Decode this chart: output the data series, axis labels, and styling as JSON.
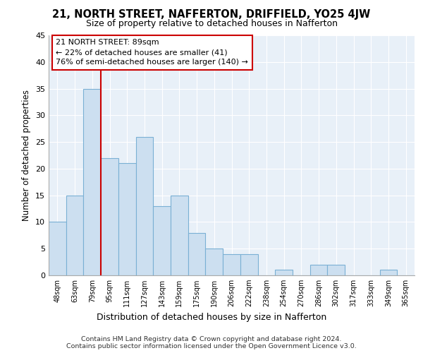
{
  "title": "21, NORTH STREET, NAFFERTON, DRIFFIELD, YO25 4JW",
  "subtitle": "Size of property relative to detached houses in Nafferton",
  "xlabel": "Distribution of detached houses by size in Nafferton",
  "ylabel": "Number of detached properties",
  "categories": [
    "48sqm",
    "63sqm",
    "79sqm",
    "95sqm",
    "111sqm",
    "127sqm",
    "143sqm",
    "159sqm",
    "175sqm",
    "190sqm",
    "206sqm",
    "222sqm",
    "238sqm",
    "254sqm",
    "270sqm",
    "286sqm",
    "302sqm",
    "317sqm",
    "333sqm",
    "349sqm",
    "365sqm"
  ],
  "values": [
    10,
    15,
    35,
    22,
    21,
    26,
    13,
    15,
    8,
    5,
    4,
    4,
    0,
    1,
    0,
    2,
    2,
    0,
    0,
    1,
    0
  ],
  "bar_color": "#ccdff0",
  "bar_edge_color": "#7ab0d4",
  "vline_pos": 3.0,
  "vline_color": "#cc0000",
  "annotation_line1": "21 NORTH STREET: 89sqm",
  "annotation_line2": "← 22% of detached houses are smaller (41)",
  "annotation_line3": "76% of semi-detached houses are larger (140) →",
  "ylim": [
    0,
    45
  ],
  "yticks": [
    0,
    5,
    10,
    15,
    20,
    25,
    30,
    35,
    40,
    45
  ],
  "bg_color": "#e8f0f8",
  "grid_color": "#ffffff",
  "footer_line1": "Contains HM Land Registry data © Crown copyright and database right 2024.",
  "footer_line2": "Contains public sector information licensed under the Open Government Licence v3.0."
}
